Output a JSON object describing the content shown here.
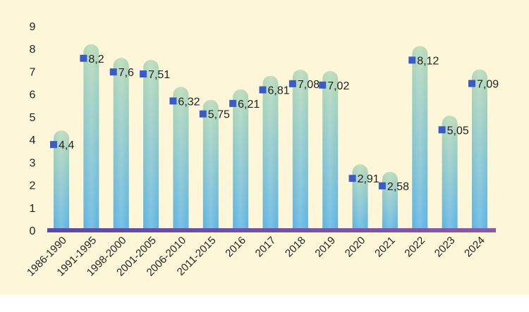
{
  "chart_data": {
    "type": "bar",
    "title": "",
    "xlabel": "",
    "ylabel": "",
    "ylim": [
      0,
      9
    ],
    "yticks": [
      "0",
      "1",
      "2",
      "3",
      "4",
      "5",
      "6",
      "7",
      "8",
      "9"
    ],
    "grid": false,
    "legend": "none",
    "categories": [
      "1986-1990",
      "1991-1995",
      "1998-2000",
      "2001-2005",
      "2006-2010",
      "2011-2015",
      "2016",
      "2017",
      "2018",
      "2019",
      "2020",
      "2021",
      "2022",
      "2023",
      "2024"
    ],
    "values": [
      4.4,
      8.2,
      7.6,
      7.51,
      6.32,
      5.75,
      6.21,
      6.81,
      7.08,
      7.02,
      2.91,
      2.58,
      8.12,
      5.05,
      7.09
    ],
    "data_labels": [
      "4,4",
      "8,2",
      "7,6",
      "7,51",
      "6,32",
      "5,75",
      "6,21",
      "6,81",
      "7,08",
      "7,02",
      "2,91",
      "2,58",
      "8,12",
      "5,05",
      "7,09"
    ],
    "colors": {
      "background": "#fdf6d8",
      "bar_top": "#b5d9b5",
      "bar_bottom": "#5cb3e3",
      "marker": "#3a5cc4",
      "axis": "#6a4fa8"
    }
  }
}
